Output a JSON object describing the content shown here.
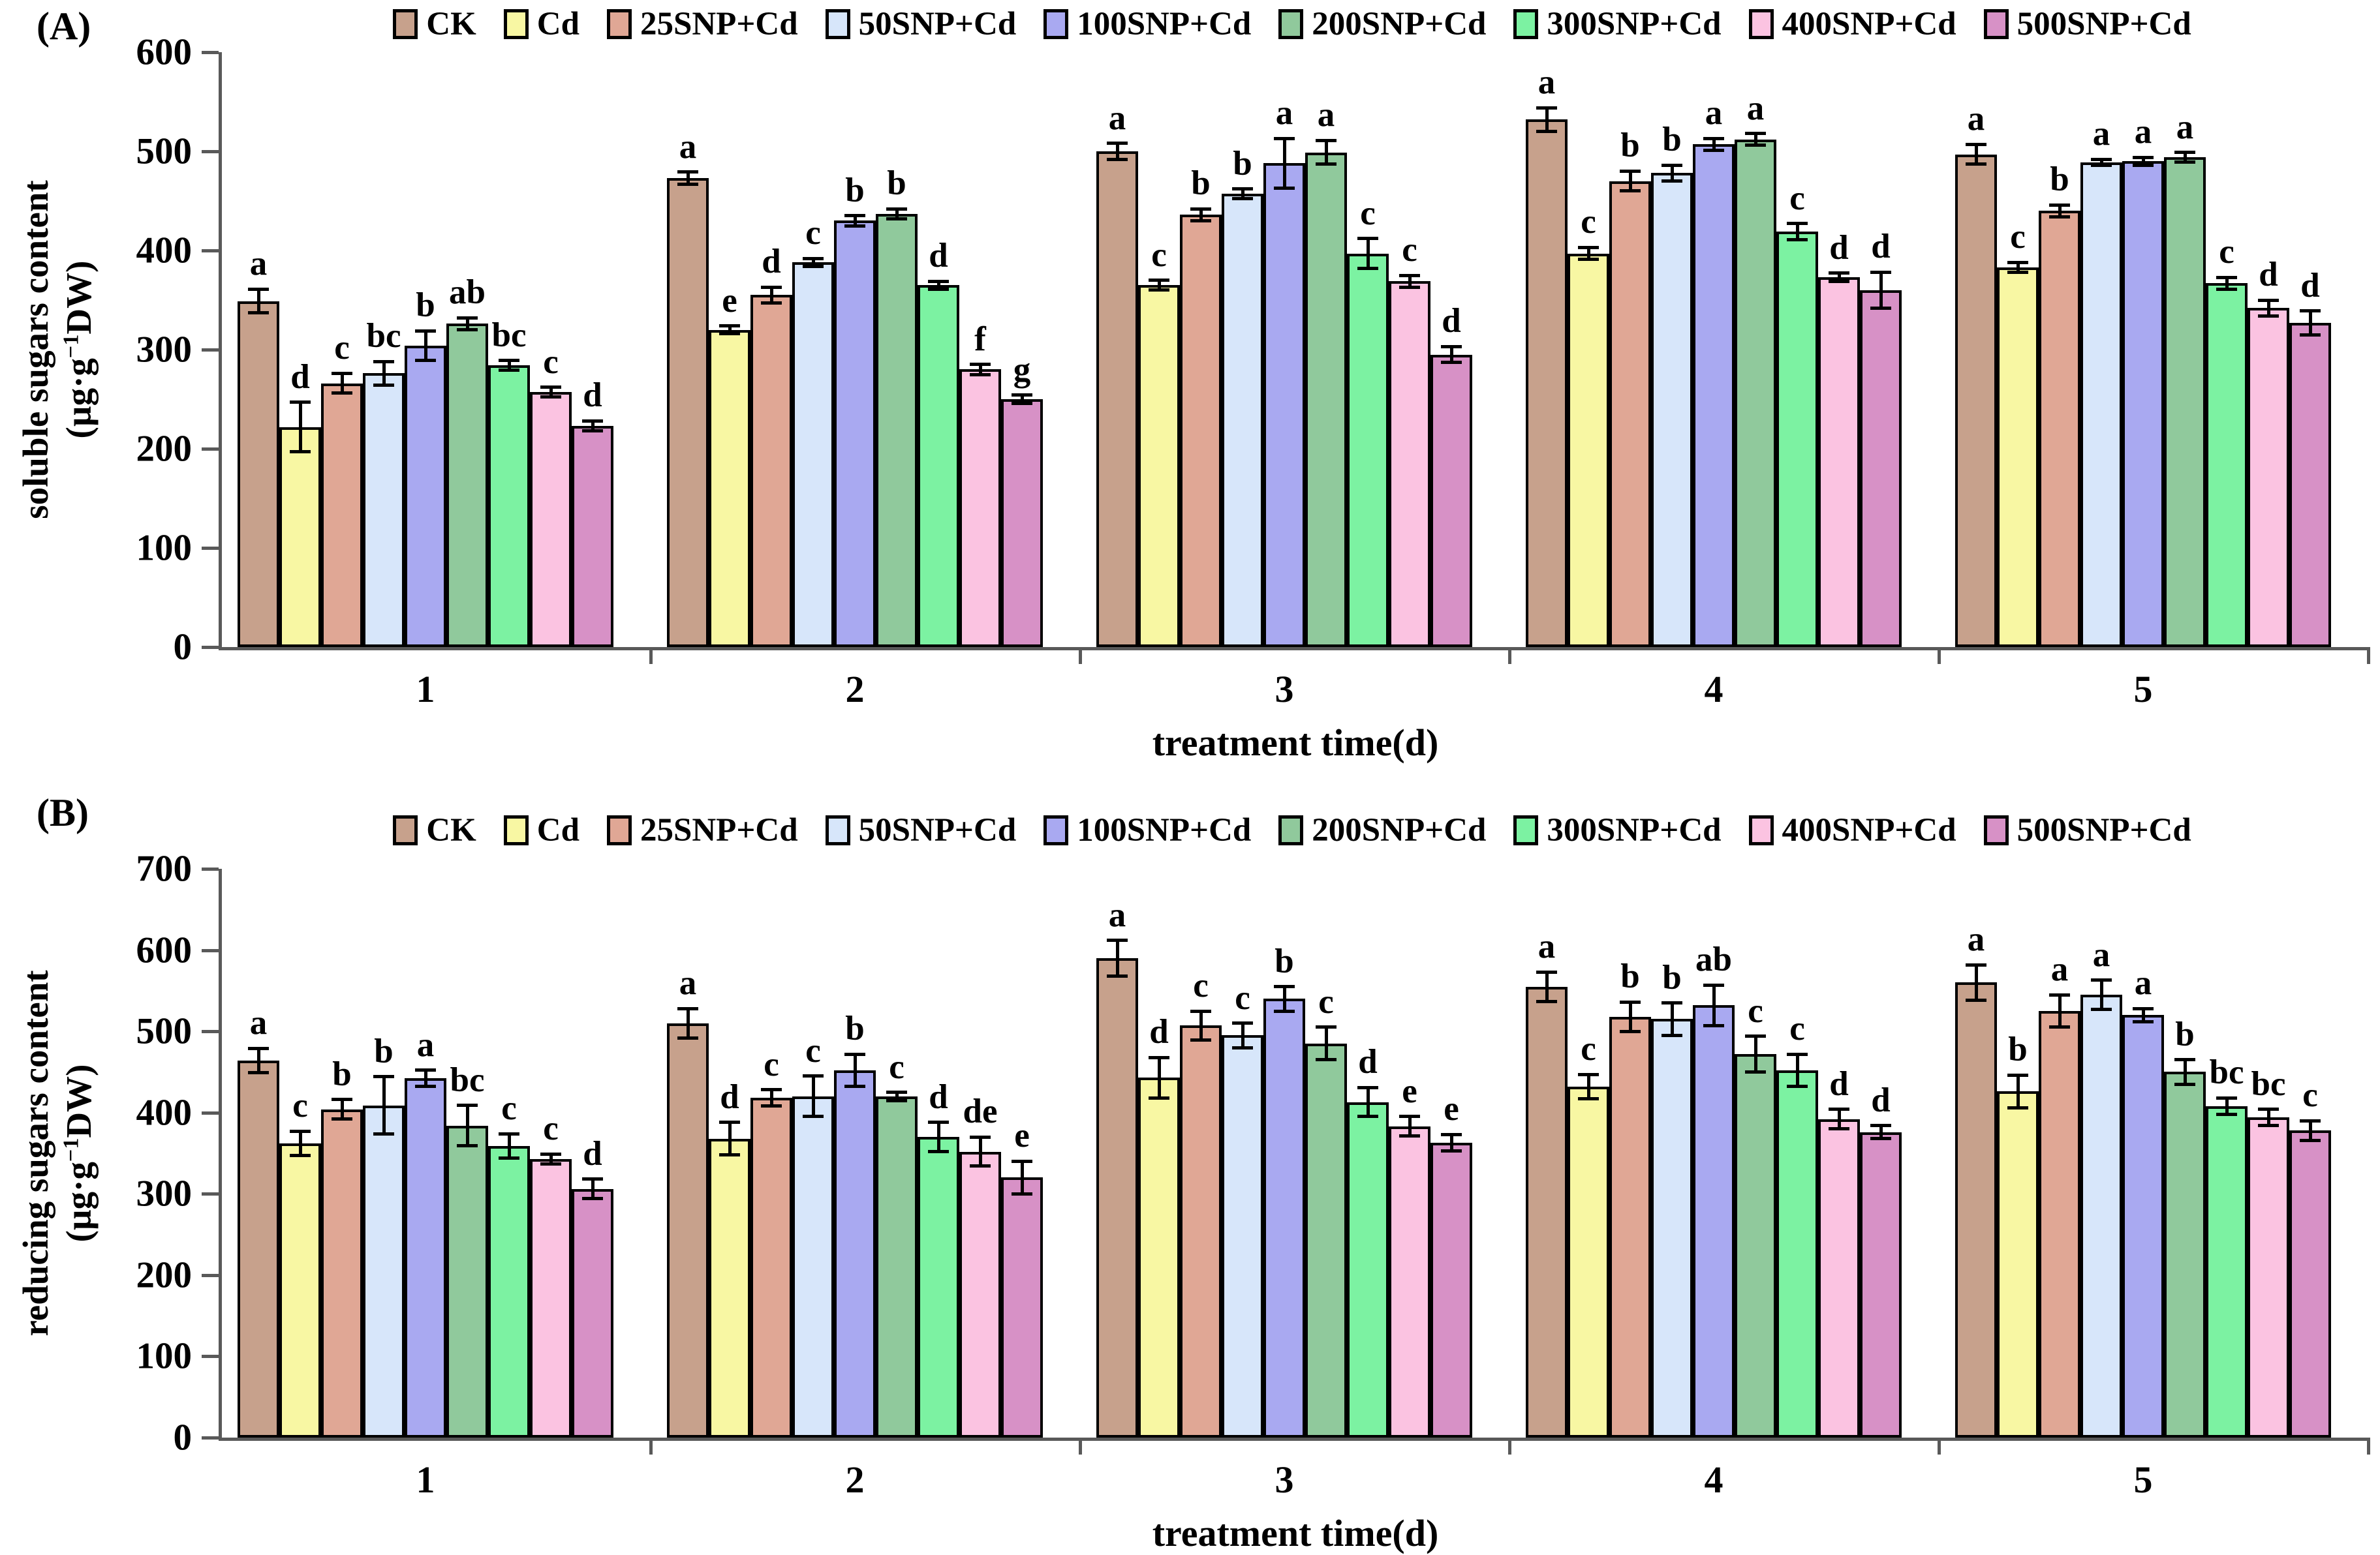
{
  "background": "#ffffff",
  "axis_color": "#595959",
  "bar_outline_color": "#000000",
  "chart_data": [
    {
      "type": "bar",
      "title": "(A)",
      "ylabel_line1": "soluble sugars content",
      "ylabel_line2": "(µg·g⁻¹DW)",
      "xlabel": "treatment time(d)",
      "ylim": [
        0,
        600
      ],
      "ytick_step": 100,
      "yticks": [
        0,
        100,
        200,
        300,
        400,
        500,
        600
      ],
      "categories": [
        "1",
        "2",
        "3",
        "4",
        "5"
      ],
      "legend_position": "top",
      "grid": false,
      "series": [
        {
          "name": "CK",
          "color": "#c7a18c",
          "values": [
            349,
            473,
            500,
            532,
            497
          ],
          "errors": [
            12,
            6,
            8,
            12,
            10
          ],
          "letters": [
            "a",
            "a",
            "a",
            "a",
            "a"
          ]
        },
        {
          "name": "Cd",
          "color": "#f8f7a3",
          "values": [
            222,
            320,
            365,
            397,
            383
          ],
          "errors": [
            25,
            4,
            5,
            6,
            5
          ],
          "letters": [
            "d",
            "e",
            "c",
            "c",
            "c"
          ]
        },
        {
          "name": "25SNP+Cd",
          "color": "#e0a795",
          "values": [
            266,
            355,
            436,
            470,
            440
          ],
          "errors": [
            10,
            8,
            6,
            10,
            6
          ],
          "letters": [
            "c",
            "d",
            "b",
            "b",
            "b"
          ]
        },
        {
          "name": "50SNP+Cd",
          "color": "#d7e6fa",
          "values": [
            276,
            388,
            457,
            478,
            489
          ],
          "errors": [
            12,
            4,
            5,
            8,
            3
          ],
          "letters": [
            "bc",
            "c",
            "b",
            "b",
            "a"
          ]
        },
        {
          "name": "100SNP+Cd",
          "color": "#a9a9f1",
          "values": [
            304,
            430,
            488,
            507,
            490
          ],
          "errors": [
            15,
            5,
            25,
            6,
            4
          ],
          "letters": [
            "b",
            "b",
            "a",
            "a",
            "a"
          ]
        },
        {
          "name": "200SNP+Cd",
          "color": "#90c99c",
          "values": [
            326,
            437,
            499,
            512,
            494
          ],
          "errors": [
            6,
            5,
            12,
            6,
            5
          ],
          "letters": [
            "ab",
            "b",
            "a",
            "a",
            "a"
          ]
        },
        {
          "name": "300SNP+Cd",
          "color": "#7cf2a2",
          "values": [
            284,
            365,
            397,
            419,
            367
          ],
          "errors": [
            5,
            4,
            15,
            8,
            6
          ],
          "letters": [
            "bc",
            "d",
            "c",
            "c",
            "c"
          ]
        },
        {
          "name": "400SNP+Cd",
          "color": "#fbc3e1",
          "values": [
            257,
            280,
            369,
            373,
            342
          ],
          "errors": [
            5,
            5,
            6,
            4,
            8
          ],
          "letters": [
            "c",
            "f",
            "c",
            "d",
            "d"
          ]
        },
        {
          "name": "500SNP+Cd",
          "color": "#d791c6",
          "values": [
            223,
            250,
            295,
            360,
            327
          ],
          "errors": [
            5,
            4,
            8,
            18,
            12
          ],
          "letters": [
            "d",
            "g",
            "d",
            "d",
            "d"
          ]
        }
      ]
    },
    {
      "type": "bar",
      "title": "(B)",
      "ylabel_line1": "reducing sugars  content",
      "ylabel_line2": "(µg·g⁻¹DW)",
      "xlabel": "treatment time(d)",
      "ylim": [
        0,
        700
      ],
      "ytick_step": 100,
      "yticks": [
        0,
        100,
        200,
        300,
        400,
        500,
        600,
        700
      ],
      "categories": [
        "1",
        "2",
        "3",
        "4",
        "5"
      ],
      "legend_position": "top",
      "grid": false,
      "series": [
        {
          "name": "CK",
          "color": "#c7a18c",
          "values": [
            464,
            510,
            590,
            555,
            560
          ],
          "errors": [
            15,
            18,
            22,
            18,
            22
          ],
          "letters": [
            "a",
            "a",
            "a",
            "a",
            "a"
          ]
        },
        {
          "name": "Cd",
          "color": "#f8f7a3",
          "values": [
            362,
            368,
            443,
            432,
            426
          ],
          "errors": [
            15,
            20,
            25,
            15,
            20
          ],
          "letters": [
            "c",
            "d",
            "d",
            "c",
            "b"
          ]
        },
        {
          "name": "25SNP+Cd",
          "color": "#e0a795",
          "values": [
            404,
            418,
            507,
            518,
            525
          ],
          "errors": [
            12,
            10,
            18,
            18,
            20
          ],
          "letters": [
            "b",
            "c",
            "c",
            "b",
            "a"
          ]
        },
        {
          "name": "50SNP+Cd",
          "color": "#d7e6fa",
          "values": [
            409,
            420,
            495,
            515,
            545
          ],
          "errors": [
            35,
            25,
            15,
            20,
            18
          ],
          "letters": [
            "b",
            "c",
            "c",
            "b",
            "a"
          ]
        },
        {
          "name": "100SNP+Cd",
          "color": "#a9a9f1",
          "values": [
            442,
            452,
            540,
            532,
            520
          ],
          "errors": [
            10,
            20,
            15,
            25,
            8
          ],
          "letters": [
            "a",
            "b",
            "b",
            "ab",
            "a"
          ]
        },
        {
          "name": "200SNP+Cd",
          "color": "#90c99c",
          "values": [
            384,
            420,
            485,
            472,
            450
          ],
          "errors": [
            25,
            5,
            20,
            22,
            15
          ],
          "letters": [
            "bc",
            "c",
            "c",
            "c",
            "b"
          ]
        },
        {
          "name": "300SNP+Cd",
          "color": "#7cf2a2",
          "values": [
            359,
            370,
            413,
            452,
            408
          ],
          "errors": [
            15,
            18,
            18,
            20,
            10
          ],
          "letters": [
            "c",
            "d",
            "d",
            "c",
            "bc"
          ]
        },
        {
          "name": "400SNP+Cd",
          "color": "#fbc3e1",
          "values": [
            343,
            352,
            383,
            392,
            394
          ],
          "errors": [
            6,
            18,
            12,
            12,
            10
          ],
          "letters": [
            "c",
            "de",
            "e",
            "d",
            "bc"
          ]
        },
        {
          "name": "500SNP+Cd",
          "color": "#d791c6",
          "values": [
            306,
            320,
            363,
            376,
            378
          ],
          "errors": [
            12,
            20,
            10,
            8,
            12
          ],
          "letters": [
            "d",
            "e",
            "e",
            "d",
            "c"
          ]
        }
      ]
    }
  ]
}
